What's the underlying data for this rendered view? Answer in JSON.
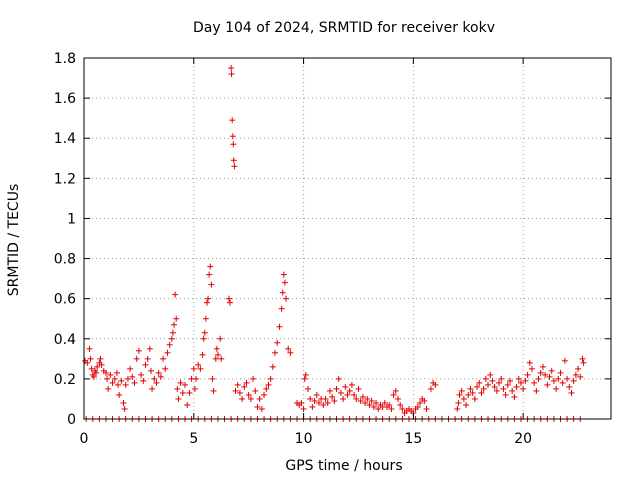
{
  "chart_data": {
    "type": "scatter",
    "title": "Day 104 of 2024, SRMTID for receiver kokv",
    "xlabel": "GPS time / hours",
    "ylabel": "SRMTID / TECUs",
    "xlim": [
      0,
      24
    ],
    "ylim": [
      0,
      1.8
    ],
    "x_ticks": [
      0,
      5,
      10,
      15,
      20
    ],
    "x_tick_labels": [
      "0",
      "5",
      "10",
      "15",
      "20"
    ],
    "y_ticks": [
      0,
      0.2,
      0.4,
      0.6,
      0.8,
      1,
      1.2,
      1.4,
      1.6,
      1.8
    ],
    "y_tick_labels": [
      "0",
      "0.2",
      "0.4",
      "0.6",
      "0.8",
      "1",
      "1.2",
      "1.4",
      "1.6",
      "1.8"
    ],
    "grid": true,
    "marker": "+",
    "marker_color": "#e00000",
    "series": [
      {
        "name": "SRMTID",
        "points": [
          [
            0.05,
            0.29
          ],
          [
            0.15,
            0.28
          ],
          [
            0.25,
            0.35
          ],
          [
            0.3,
            0.3
          ],
          [
            0.35,
            0.25
          ],
          [
            0.4,
            0.22
          ],
          [
            0.45,
            0.21
          ],
          [
            0.5,
            0.24
          ],
          [
            0.55,
            0.23
          ],
          [
            0.6,
            0.26
          ],
          [
            0.7,
            0.28
          ],
          [
            0.75,
            0.3
          ],
          [
            0.8,
            0.27
          ],
          [
            0.9,
            0.24
          ],
          [
            1.0,
            0.23
          ],
          [
            1.05,
            0.2
          ],
          [
            1.1,
            0.15
          ],
          [
            1.2,
            0.22
          ],
          [
            1.3,
            0.18
          ],
          [
            1.4,
            0.2
          ],
          [
            1.5,
            0.23
          ],
          [
            1.55,
            0.17
          ],
          [
            1.6,
            0.12
          ],
          [
            1.7,
            0.19
          ],
          [
            1.8,
            0.08
          ],
          [
            1.85,
            0.05
          ],
          [
            1.9,
            0.17
          ],
          [
            2.0,
            0.2
          ],
          [
            2.1,
            0.25
          ],
          [
            2.2,
            0.21
          ],
          [
            2.3,
            0.18
          ],
          [
            2.4,
            0.3
          ],
          [
            2.5,
            0.34
          ],
          [
            2.6,
            0.22
          ],
          [
            2.7,
            0.19
          ],
          [
            2.8,
            0.27
          ],
          [
            2.9,
            0.3
          ],
          [
            3.0,
            0.35
          ],
          [
            3.05,
            0.24
          ],
          [
            3.1,
            0.15
          ],
          [
            3.2,
            0.2
          ],
          [
            3.3,
            0.18
          ],
          [
            3.4,
            0.23
          ],
          [
            3.5,
            0.21
          ],
          [
            3.6,
            0.3
          ],
          [
            3.7,
            0.25
          ],
          [
            3.8,
            0.33
          ],
          [
            3.9,
            0.37
          ],
          [
            4.0,
            0.4
          ],
          [
            4.05,
            0.43
          ],
          [
            4.1,
            0.47
          ],
          [
            4.15,
            0.62
          ],
          [
            4.2,
            0.5
          ],
          [
            4.25,
            0.15
          ],
          [
            4.3,
            0.1
          ],
          [
            4.4,
            0.18
          ],
          [
            4.5,
            0.13
          ],
          [
            4.6,
            0.17
          ],
          [
            4.7,
            0.07
          ],
          [
            4.8,
            0.13
          ],
          [
            4.9,
            0.2
          ],
          [
            5.0,
            0.25
          ],
          [
            5.05,
            0.15
          ],
          [
            5.1,
            0.2
          ],
          [
            5.2,
            0.27
          ],
          [
            5.3,
            0.25
          ],
          [
            5.4,
            0.32
          ],
          [
            5.45,
            0.4
          ],
          [
            5.5,
            0.43
          ],
          [
            5.55,
            0.5
          ],
          [
            5.6,
            0.58
          ],
          [
            5.65,
            0.6
          ],
          [
            5.7,
            0.72
          ],
          [
            5.75,
            0.76
          ],
          [
            5.8,
            0.67
          ],
          [
            5.85,
            0.2
          ],
          [
            5.9,
            0.14
          ],
          [
            6.0,
            0.3
          ],
          [
            6.05,
            0.35
          ],
          [
            6.1,
            0.32
          ],
          [
            6.2,
            0.4
          ],
          [
            6.25,
            0.3
          ],
          [
            6.6,
            0.6
          ],
          [
            6.65,
            0.58
          ],
          [
            6.7,
            1.75
          ],
          [
            6.72,
            1.72
          ],
          [
            6.75,
            1.49
          ],
          [
            6.78,
            1.41
          ],
          [
            6.8,
            1.37
          ],
          [
            6.82,
            1.29
          ],
          [
            6.85,
            1.26
          ],
          [
            6.9,
            0.14
          ],
          [
            7.0,
            0.17
          ],
          [
            7.1,
            0.13
          ],
          [
            7.2,
            0.1
          ],
          [
            7.3,
            0.16
          ],
          [
            7.4,
            0.18
          ],
          [
            7.5,
            0.12
          ],
          [
            7.6,
            0.1
          ],
          [
            7.7,
            0.2
          ],
          [
            7.8,
            0.14
          ],
          [
            7.9,
            0.06
          ],
          [
            8.0,
            0.1
          ],
          [
            8.1,
            0.05
          ],
          [
            8.2,
            0.12
          ],
          [
            8.3,
            0.15
          ],
          [
            8.4,
            0.17
          ],
          [
            8.5,
            0.2
          ],
          [
            8.6,
            0.26
          ],
          [
            8.7,
            0.33
          ],
          [
            8.8,
            0.38
          ],
          [
            8.9,
            0.46
          ],
          [
            9.0,
            0.55
          ],
          [
            9.05,
            0.63
          ],
          [
            9.1,
            0.72
          ],
          [
            9.15,
            0.68
          ],
          [
            9.2,
            0.6
          ],
          [
            9.3,
            0.35
          ],
          [
            9.4,
            0.33
          ],
          [
            9.7,
            0.08
          ],
          [
            9.8,
            0.07
          ],
          [
            9.9,
            0.08
          ],
          [
            10.0,
            0.05
          ],
          [
            10.05,
            0.2
          ],
          [
            10.1,
            0.22
          ],
          [
            10.2,
            0.15
          ],
          [
            10.3,
            0.1
          ],
          [
            10.4,
            0.06
          ],
          [
            10.5,
            0.09
          ],
          [
            10.6,
            0.12
          ],
          [
            10.7,
            0.08
          ],
          [
            10.8,
            0.1
          ],
          [
            10.9,
            0.07
          ],
          [
            11.0,
            0.1
          ],
          [
            11.1,
            0.08
          ],
          [
            11.2,
            0.14
          ],
          [
            11.3,
            0.11
          ],
          [
            11.4,
            0.09
          ],
          [
            11.5,
            0.15
          ],
          [
            11.6,
            0.2
          ],
          [
            11.7,
            0.13
          ],
          [
            11.8,
            0.1
          ],
          [
            11.9,
            0.16
          ],
          [
            12.0,
            0.12
          ],
          [
            12.1,
            0.14
          ],
          [
            12.2,
            0.17
          ],
          [
            12.3,
            0.12
          ],
          [
            12.4,
            0.1
          ],
          [
            12.5,
            0.15
          ],
          [
            12.6,
            0.09
          ],
          [
            12.7,
            0.11
          ],
          [
            12.8,
            0.08
          ],
          [
            12.9,
            0.1
          ],
          [
            13.0,
            0.07
          ],
          [
            13.1,
            0.09
          ],
          [
            13.2,
            0.06
          ],
          [
            13.3,
            0.08
          ],
          [
            13.4,
            0.05
          ],
          [
            13.5,
            0.07
          ],
          [
            13.6,
            0.06
          ],
          [
            13.7,
            0.08
          ],
          [
            13.8,
            0.06
          ],
          [
            13.9,
            0.07
          ],
          [
            14.0,
            0.05
          ],
          [
            14.1,
            0.12
          ],
          [
            14.2,
            0.14
          ],
          [
            14.3,
            0.1
          ],
          [
            14.4,
            0.07
          ],
          [
            14.5,
            0.05
          ],
          [
            14.6,
            0.03
          ],
          [
            14.7,
            0.04
          ],
          [
            14.8,
            0.05
          ],
          [
            14.9,
            0.04
          ],
          [
            15.0,
            0.03
          ],
          [
            15.1,
            0.05
          ],
          [
            15.2,
            0.06
          ],
          [
            15.3,
            0.08
          ],
          [
            15.4,
            0.1
          ],
          [
            15.5,
            0.09
          ],
          [
            15.6,
            0.05
          ],
          [
            15.8,
            0.15
          ],
          [
            15.9,
            0.18
          ],
          [
            16.0,
            0.17
          ],
          [
            17.0,
            0.05
          ],
          [
            17.05,
            0.08
          ],
          [
            17.1,
            0.12
          ],
          [
            17.2,
            0.14
          ],
          [
            17.3,
            0.1
          ],
          [
            17.4,
            0.07
          ],
          [
            17.5,
            0.12
          ],
          [
            17.6,
            0.15
          ],
          [
            17.7,
            0.13
          ],
          [
            17.8,
            0.1
          ],
          [
            17.9,
            0.16
          ],
          [
            18.0,
            0.18
          ],
          [
            18.1,
            0.13
          ],
          [
            18.2,
            0.15
          ],
          [
            18.3,
            0.2
          ],
          [
            18.4,
            0.17
          ],
          [
            18.5,
            0.22
          ],
          [
            18.6,
            0.19
          ],
          [
            18.7,
            0.16
          ],
          [
            18.8,
            0.14
          ],
          [
            18.9,
            0.18
          ],
          [
            19.0,
            0.2
          ],
          [
            19.1,
            0.15
          ],
          [
            19.2,
            0.12
          ],
          [
            19.3,
            0.17
          ],
          [
            19.4,
            0.19
          ],
          [
            19.5,
            0.14
          ],
          [
            19.6,
            0.11
          ],
          [
            19.7,
            0.16
          ],
          [
            19.8,
            0.2
          ],
          [
            19.9,
            0.18
          ],
          [
            20.0,
            0.15
          ],
          [
            20.1,
            0.19
          ],
          [
            20.2,
            0.22
          ],
          [
            20.3,
            0.28
          ],
          [
            20.4,
            0.25
          ],
          [
            20.5,
            0.18
          ],
          [
            20.6,
            0.14
          ],
          [
            20.7,
            0.2
          ],
          [
            20.8,
            0.23
          ],
          [
            20.9,
            0.26
          ],
          [
            21.0,
            0.22
          ],
          [
            21.1,
            0.17
          ],
          [
            21.2,
            0.21
          ],
          [
            21.3,
            0.24
          ],
          [
            21.4,
            0.19
          ],
          [
            21.5,
            0.15
          ],
          [
            21.6,
            0.2
          ],
          [
            21.7,
            0.23
          ],
          [
            21.8,
            0.18
          ],
          [
            21.9,
            0.29
          ],
          [
            22.0,
            0.2
          ],
          [
            22.1,
            0.16
          ],
          [
            22.2,
            0.13
          ],
          [
            22.3,
            0.19
          ],
          [
            22.4,
            0.22
          ],
          [
            22.5,
            0.25
          ],
          [
            22.6,
            0.21
          ],
          [
            22.7,
            0.3
          ],
          [
            22.75,
            0.28
          ],
          [
            0.1,
            0
          ],
          [
            0.4,
            0
          ],
          [
            0.7,
            0
          ],
          [
            1.0,
            0
          ],
          [
            1.3,
            0
          ],
          [
            1.6,
            0
          ],
          [
            1.9,
            0
          ],
          [
            2.2,
            0
          ],
          [
            2.5,
            0
          ],
          [
            2.8,
            0
          ],
          [
            3.1,
            0
          ],
          [
            3.4,
            0
          ],
          [
            3.7,
            0
          ],
          [
            4.0,
            0
          ],
          [
            4.3,
            0
          ],
          [
            4.6,
            0
          ],
          [
            4.9,
            0
          ],
          [
            5.2,
            0
          ],
          [
            5.5,
            0
          ],
          [
            5.8,
            0
          ],
          [
            6.1,
            0
          ],
          [
            6.4,
            0
          ],
          [
            6.7,
            0
          ],
          [
            7.0,
            0
          ],
          [
            7.3,
            0
          ],
          [
            7.6,
            0
          ],
          [
            7.9,
            0
          ],
          [
            8.2,
            0
          ],
          [
            8.5,
            0
          ],
          [
            8.8,
            0
          ],
          [
            9.1,
            0
          ],
          [
            9.4,
            0
          ],
          [
            9.7,
            0
          ],
          [
            10.0,
            0
          ],
          [
            10.3,
            0
          ],
          [
            10.6,
            0
          ],
          [
            10.9,
            0
          ],
          [
            11.2,
            0
          ],
          [
            11.5,
            0
          ],
          [
            11.8,
            0
          ],
          [
            12.1,
            0
          ],
          [
            12.4,
            0
          ],
          [
            12.7,
            0
          ],
          [
            13.0,
            0
          ],
          [
            13.3,
            0
          ],
          [
            13.6,
            0
          ],
          [
            13.9,
            0
          ],
          [
            14.2,
            0
          ],
          [
            14.5,
            0
          ],
          [
            14.8,
            0
          ],
          [
            15.1,
            0
          ],
          [
            15.4,
            0
          ],
          [
            15.7,
            0
          ],
          [
            16.0,
            0
          ],
          [
            16.3,
            0
          ],
          [
            16.6,
            0
          ],
          [
            16.9,
            0
          ],
          [
            17.2,
            0
          ],
          [
            17.5,
            0
          ],
          [
            17.8,
            0
          ],
          [
            18.1,
            0
          ],
          [
            18.4,
            0
          ],
          [
            18.7,
            0
          ],
          [
            19.0,
            0
          ],
          [
            19.3,
            0
          ],
          [
            19.6,
            0
          ],
          [
            19.9,
            0
          ],
          [
            20.2,
            0
          ],
          [
            20.5,
            0
          ],
          [
            20.8,
            0
          ],
          [
            21.1,
            0
          ],
          [
            21.4,
            0
          ],
          [
            21.7,
            0
          ],
          [
            22.0,
            0
          ],
          [
            22.3,
            0
          ],
          [
            22.6,
            0
          ]
        ]
      }
    ]
  }
}
